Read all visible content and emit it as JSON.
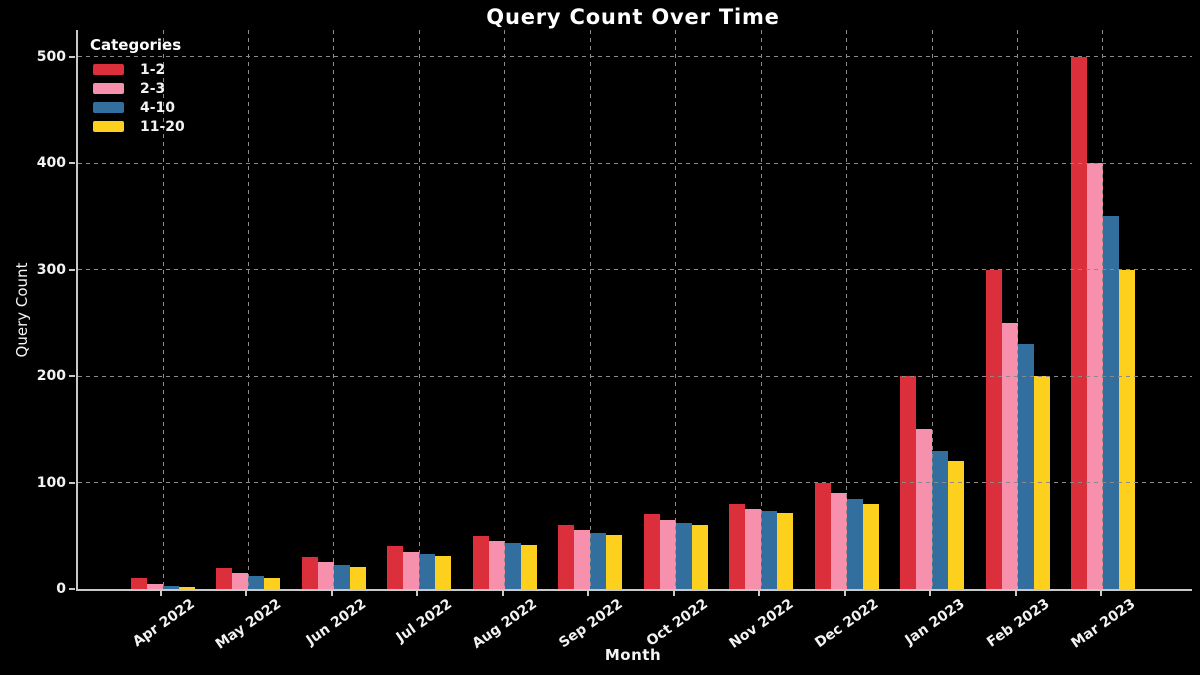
{
  "chart_data": {
    "type": "bar",
    "title": "Query Count Over Time",
    "xlabel": "Month",
    "ylabel": "Query Count",
    "legend_title": "Categories",
    "legend_position": "upper left",
    "grid": true,
    "grid_style": "dashed",
    "background_color": "#000000",
    "text_color": "#f5f5f5",
    "grid_color": "#8a8a8a",
    "axis_color": "#c9c9c9",
    "y_ticks": [
      0,
      100,
      200,
      300,
      400,
      500
    ],
    "ylim": [
      0,
      525
    ],
    "categories": [
      "Apr 2022",
      "May 2022",
      "Jun 2022",
      "Jul 2022",
      "Aug 2022",
      "Sep 2022",
      "Oct 2022",
      "Nov 2022",
      "Dec 2022",
      "Jan 2023",
      "Feb 2023",
      "Mar 2023"
    ],
    "series": [
      {
        "name": "1-2",
        "color": "#dc2f3c",
        "values": [
          10,
          20,
          30,
          40,
          50,
          60,
          70,
          80,
          100,
          200,
          300,
          500
        ]
      },
      {
        "name": "2-3",
        "color": "#f790ac",
        "values": [
          5,
          15,
          25,
          35,
          45,
          55,
          65,
          75,
          90,
          150,
          250,
          400
        ]
      },
      {
        "name": "4-10",
        "color": "#336f9e",
        "values": [
          3,
          12,
          23,
          33,
          43,
          53,
          62,
          73,
          85,
          130,
          230,
          350
        ]
      },
      {
        "name": "11-20",
        "color": "#fdd01e",
        "values": [
          2,
          10,
          21,
          31,
          41,
          51,
          60,
          71,
          80,
          120,
          200,
          300
        ]
      }
    ]
  }
}
